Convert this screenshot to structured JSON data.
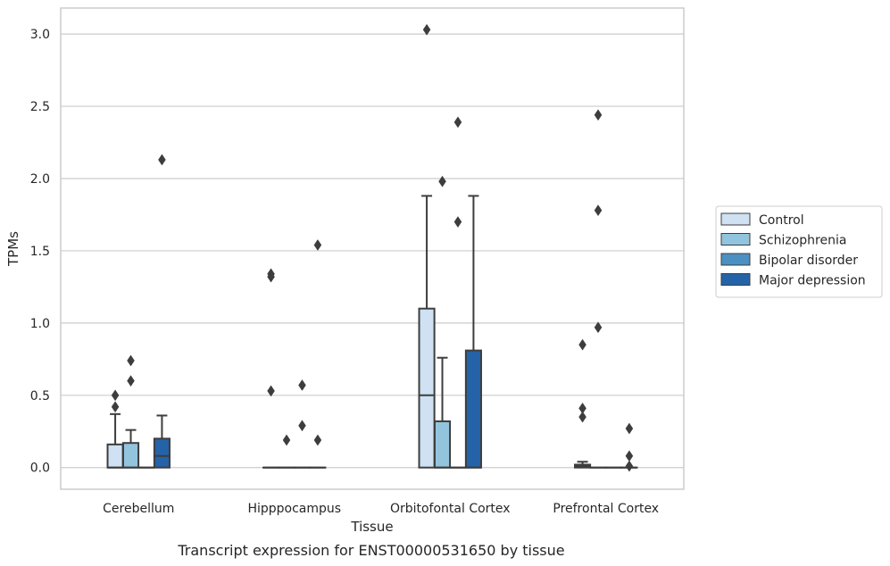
{
  "caption": "Transcript expression for ENST00000531650 by tissue",
  "chart_data": {
    "type": "box",
    "title": "",
    "xlabel": "Tissue",
    "ylabel": "TPMs",
    "ylim": [
      -0.15,
      3.18
    ],
    "yticks": [
      0.0,
      0.5,
      1.0,
      1.5,
      2.0,
      2.5,
      3.0
    ],
    "ytick_labels": [
      "0.0",
      "0.5",
      "1.0",
      "1.5",
      "2.0",
      "2.5",
      "3.0"
    ],
    "grid": "horizontal",
    "legend_position": "right",
    "categories": [
      "Cerebellum",
      "Hipppocampus",
      "Orbitofontal Cortex",
      "Prefrontal Cortex"
    ],
    "series": [
      {
        "name": "Control",
        "color": "#cfe1f2",
        "boxes": [
          {
            "q1": 0.0,
            "median": 0.0,
            "q3": 0.16,
            "whisker_low": 0.0,
            "whisker_high": 0.37,
            "outliers": [
              0.42,
              0.5
            ]
          },
          {
            "q1": 0.0,
            "median": 0.0,
            "q3": 0.0,
            "whisker_low": 0.0,
            "whisker_high": 0.0,
            "outliers": [
              0.53,
              1.32,
              1.34
            ]
          },
          {
            "q1": 0.0,
            "median": 0.5,
            "q3": 1.1,
            "whisker_low": 0.0,
            "whisker_high": 1.88,
            "outliers": [
              3.03
            ]
          },
          {
            "q1": 0.0,
            "median": 0.01,
            "q3": 0.02,
            "whisker_low": 0.0,
            "whisker_high": 0.04,
            "outliers": [
              0.35,
              0.41,
              0.85
            ]
          }
        ]
      },
      {
        "name": "Schizophrenia",
        "color": "#93c4de",
        "boxes": [
          {
            "q1": 0.0,
            "median": 0.0,
            "q3": 0.17,
            "whisker_low": 0.0,
            "whisker_high": 0.26,
            "outliers": [
              0.6,
              0.74
            ]
          },
          {
            "q1": 0.0,
            "median": 0.0,
            "q3": 0.0,
            "whisker_low": 0.0,
            "whisker_high": 0.0,
            "outliers": [
              0.19
            ]
          },
          {
            "q1": 0.0,
            "median": 0.0,
            "q3": 0.32,
            "whisker_low": 0.0,
            "whisker_high": 0.76,
            "outliers": [
              1.98
            ]
          },
          {
            "q1": 0.0,
            "median": 0.0,
            "q3": 0.0,
            "whisker_low": 0.0,
            "whisker_high": 0.0,
            "outliers": [
              0.97,
              1.78,
              2.44
            ]
          }
        ]
      },
      {
        "name": "Bipolar disorder",
        "color": "#4b90c2",
        "boxes": [
          {
            "q1": 0.0,
            "median": 0.0,
            "q3": 0.0,
            "whisker_low": 0.0,
            "whisker_high": 0.0,
            "outliers": []
          },
          {
            "q1": 0.0,
            "median": 0.0,
            "q3": 0.0,
            "whisker_low": 0.0,
            "whisker_high": 0.0,
            "outliers": [
              0.29,
              0.57
            ]
          },
          {
            "q1": 0.0,
            "median": 0.0,
            "q3": 0.0,
            "whisker_low": 0.0,
            "whisker_high": 0.0,
            "outliers": [
              1.7,
              2.39
            ]
          },
          {
            "q1": 0.0,
            "median": 0.0,
            "q3": 0.0,
            "whisker_low": 0.0,
            "whisker_high": 0.0,
            "outliers": []
          }
        ]
      },
      {
        "name": "Major depression",
        "color": "#2563a8",
        "boxes": [
          {
            "q1": 0.0,
            "median": 0.08,
            "q3": 0.2,
            "whisker_low": 0.0,
            "whisker_high": 0.36,
            "outliers": [
              2.13
            ]
          },
          {
            "q1": 0.0,
            "median": 0.0,
            "q3": 0.0,
            "whisker_low": 0.0,
            "whisker_high": 0.0,
            "outliers": [
              0.19,
              1.54
            ]
          },
          {
            "q1": 0.0,
            "median": 0.0,
            "q3": 0.81,
            "whisker_low": 0.0,
            "whisker_high": 1.88,
            "outliers": []
          },
          {
            "q1": 0.0,
            "median": 0.0,
            "q3": 0.0,
            "whisker_low": 0.0,
            "whisker_high": 0.0,
            "outliers": [
              0.01,
              0.08,
              0.27
            ]
          }
        ]
      }
    ]
  }
}
